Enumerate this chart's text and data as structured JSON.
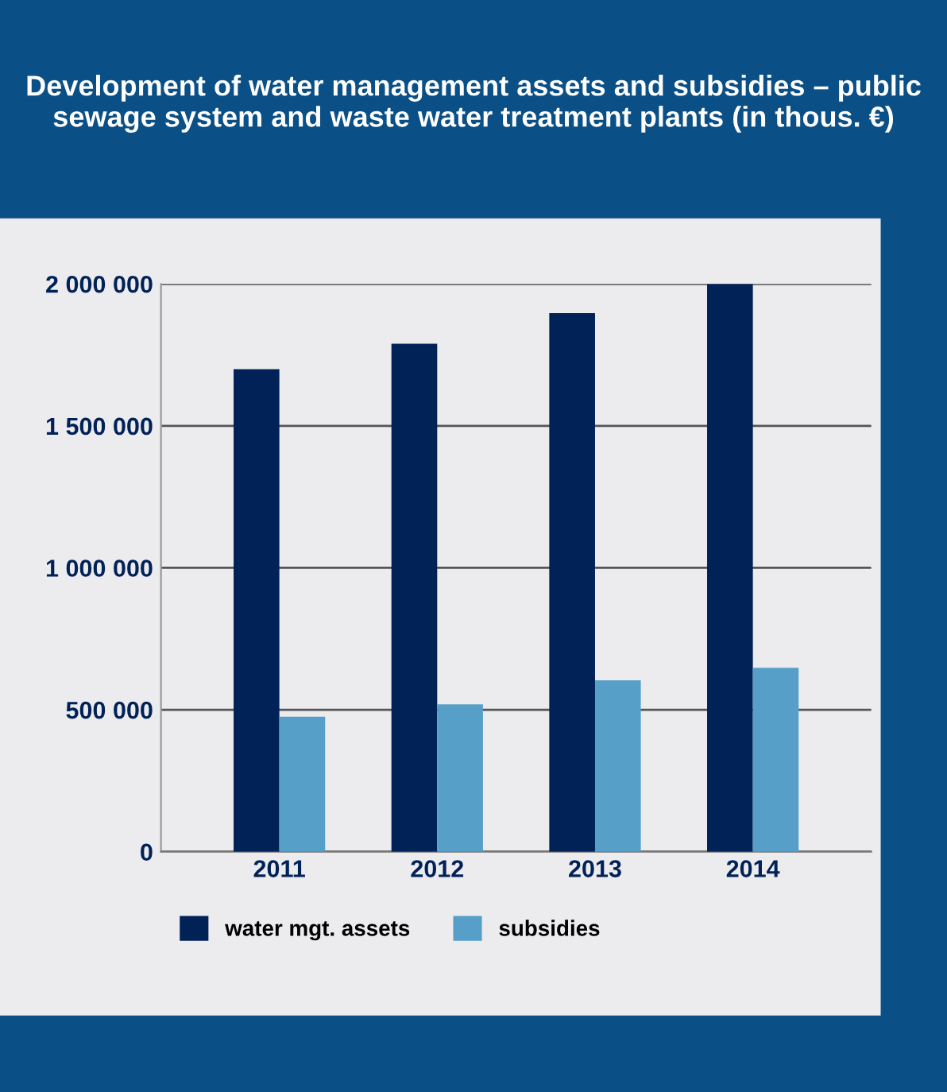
{
  "chart_data": {
    "type": "bar",
    "title": "Development of water management assets and subsidies – public sewage system and waste water treatment plants (in thous. €)",
    "categories": [
      "2011",
      "2012",
      "2013",
      "2014"
    ],
    "series": [
      {
        "name": "water mgt. assets",
        "color": "#012257",
        "values": [
          1700000,
          1789000,
          1897000,
          2000000
        ]
      },
      {
        "name": "subsidies",
        "color": "#569fc8",
        "values": [
          476000,
          519000,
          604000,
          648000
        ]
      }
    ],
    "ylim": [
      0,
      2000000
    ],
    "yticks": [
      0,
      {
        "value": 500000,
        "label": "500 000"
      },
      {
        "value": 1000000,
        "label": "1 000 000"
      },
      {
        "value": 1500000,
        "label": "1 500 000"
      },
      {
        "value": 2000000,
        "label": "2 000 000"
      }
    ],
    "grid": "y",
    "legend": "bottom left"
  }
}
